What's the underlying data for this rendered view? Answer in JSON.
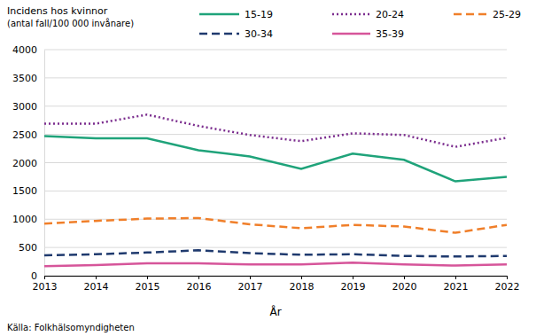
{
  "chart_data": {
    "type": "line",
    "title": "Incidens hos kvinnor",
    "subtitle": "(antal fall/100 000 invånare)",
    "xlabel": "År",
    "source": "Källa: Folkhälsomyndigheten",
    "x": [
      2013,
      2014,
      2015,
      2016,
      2017,
      2018,
      2019,
      2020,
      2021,
      2022
    ],
    "xlim": [
      2013,
      2022
    ],
    "xticks": [
      2013,
      2014,
      2015,
      2016,
      2017,
      2018,
      2019,
      2020,
      2021,
      2022
    ],
    "ylim": [
      0,
      4000
    ],
    "yticks": [
      0,
      500,
      1000,
      1500,
      2000,
      2500,
      3000,
      3500,
      4000
    ],
    "grid": true,
    "legend": "top",
    "series": [
      {
        "name": "15-19",
        "color": "#1fa37a",
        "line_style": "solid",
        "values": [
          2470,
          2430,
          2430,
          2220,
          2110,
          1890,
          2160,
          2050,
          1670,
          1750
        ]
      },
      {
        "name": "20-24",
        "color": "#7b2d8e",
        "line_style": "dotted",
        "values": [
          2690,
          2690,
          2850,
          2650,
          2490,
          2380,
          2520,
          2490,
          2280,
          2440
        ]
      },
      {
        "name": "25-29",
        "color": "#f07f2a",
        "line_style": "dashed",
        "values": [
          920,
          970,
          1010,
          1020,
          910,
          840,
          900,
          870,
          760,
          900
        ]
      },
      {
        "name": "30-34",
        "color": "#1f3a6e",
        "line_style": "dashed",
        "values": [
          360,
          380,
          410,
          450,
          400,
          370,
          380,
          350,
          340,
          350
        ]
      },
      {
        "name": "35-39",
        "color": "#d6559a",
        "line_style": "solid",
        "values": [
          170,
          190,
          220,
          220,
          200,
          200,
          230,
          200,
          180,
          200
        ]
      }
    ]
  }
}
